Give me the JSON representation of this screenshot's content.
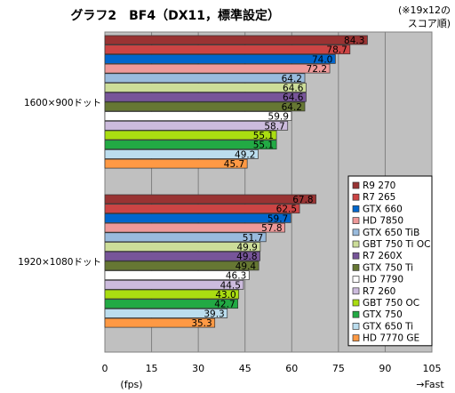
{
  "chart_data": {
    "type": "bar",
    "orientation": "horizontal",
    "title": "グラフ2　BF4（DX11，標準設定）",
    "note_line1": "(※19x12の",
    "note_line2": "スコア順)",
    "xlabel": "(fps)",
    "xlabel_right": "→Fast",
    "xlim": [
      0,
      105
    ],
    "xticks": [
      0,
      15,
      30,
      45,
      60,
      75,
      90,
      105
    ],
    "grid": true,
    "legend_position": "right",
    "groups": [
      "1600×900ドット",
      "1920×1080ドット"
    ],
    "series": [
      {
        "name": "R9 270",
        "color": "#993333",
        "values": [
          84.3,
          67.8
        ]
      },
      {
        "name": "R7 265",
        "color": "#cc4444",
        "values": [
          78.7,
          62.5
        ]
      },
      {
        "name": "GTX 660",
        "color": "#0066cc",
        "values": [
          74.0,
          59.7
        ]
      },
      {
        "name": "HD 7850",
        "color": "#ee9999",
        "values": [
          72.2,
          57.8
        ]
      },
      {
        "name": "GTX 650 TiB",
        "color": "#99bbdd",
        "values": [
          64.2,
          51.7
        ]
      },
      {
        "name": "GBT 750 Ti OC",
        "color": "#ccdd99",
        "values": [
          64.6,
          49.9
        ]
      },
      {
        "name": "R7 260X",
        "color": "#775599",
        "values": [
          64.6,
          49.8
        ]
      },
      {
        "name": "GTX 750 Ti",
        "color": "#667733",
        "values": [
          64.2,
          49.4
        ]
      },
      {
        "name": "HD 7790",
        "color": "#ffffff",
        "values": [
          59.9,
          46.3
        ]
      },
      {
        "name": "R7 260",
        "color": "#ccbbdd",
        "values": [
          58.7,
          44.5
        ]
      },
      {
        "name": "GBT 750 OC",
        "color": "#aadd11",
        "values": [
          55.1,
          43.0
        ]
      },
      {
        "name": "GTX 750",
        "color": "#22aa44",
        "values": [
          55.1,
          42.7
        ]
      },
      {
        "name": "GTX 650 Ti",
        "color": "#bbddee",
        "values": [
          49.2,
          39.3
        ]
      },
      {
        "name": "HD 7770 GE",
        "color": "#ff9944",
        "values": [
          45.7,
          35.3
        ]
      }
    ]
  }
}
